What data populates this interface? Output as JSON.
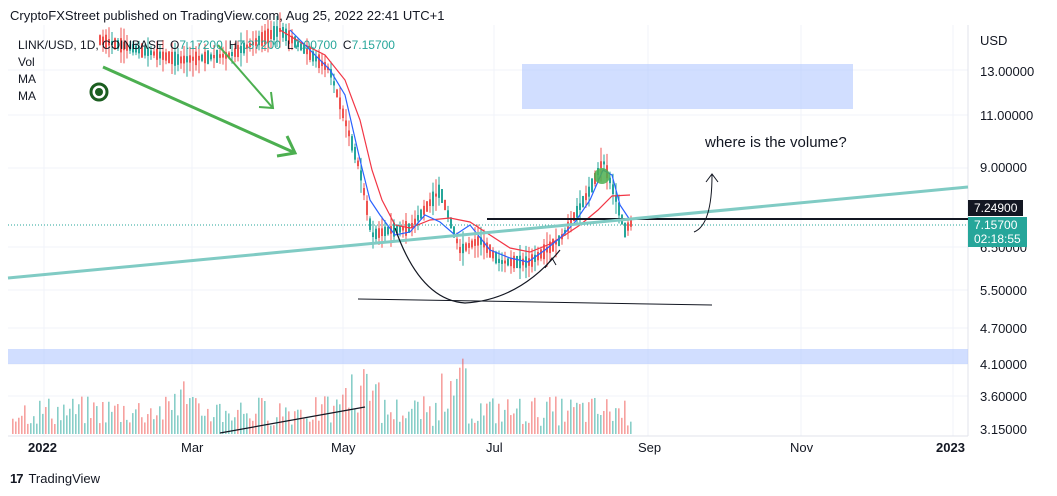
{
  "publisher_line": "CryptoFXStreet published on TradingView.com, Aug 25, 2022 22:41 UTC+1",
  "legend": {
    "symbol": "LINK/USD, 1D, COINBASE",
    "o_label": "O",
    "o_value": "7.17200",
    "h_label": "H",
    "h_value": "7.37200",
    "l_label": "L",
    "l_value": "7.00700",
    "c_label": "C",
    "c_value": "7.15700",
    "vol": "Vol",
    "ma1": "MA",
    "ma2": "MA"
  },
  "annotation": "where is the volume?",
  "price_tags": {
    "level": "7.24900",
    "last": "7.15700",
    "countdown": "02:18:55"
  },
  "branding": {
    "logo": "17",
    "name": "TradingView"
  },
  "colors": {
    "up": "#26a69a",
    "down": "#ef5350",
    "ma_fast": "#2962ff",
    "ma_slow": "#f23645",
    "trend": "#4caf50",
    "trendline": "#80cbc4",
    "zone": "#b3c8ff"
  },
  "chart_data": {
    "type": "candlestick",
    "currency": "USD",
    "y_axis_label": "USD",
    "y_ticks": [
      "13.00000",
      "11.00000",
      "9.00000",
      "6.50000",
      "5.50000",
      "4.70000",
      "4.10000",
      "3.60000",
      "3.15000"
    ],
    "x_ticks": [
      "2022",
      "Mar",
      "May",
      "Jul",
      "Sep",
      "Nov",
      "2023"
    ],
    "close_path_approx": [
      {
        "month": "Jan",
        "close": 15.0
      },
      {
        "month": "Feb",
        "close": 16.0
      },
      {
        "month": "Mar",
        "close": 15.5
      },
      {
        "month": "Apr",
        "close": 13.5
      },
      {
        "month": "May",
        "close": 7.5
      },
      {
        "month": "Jun",
        "close": 6.2
      },
      {
        "month": "Jul",
        "close": 6.8
      },
      {
        "month": "Aug",
        "close": 8.9
      },
      {
        "month": "Aug-25",
        "close": 7.157
      }
    ],
    "horizontal_level": 7.249,
    "supply_zone": [
      11.6,
      13.5
    ],
    "demand_zone": [
      4.0,
      4.2
    ]
  }
}
